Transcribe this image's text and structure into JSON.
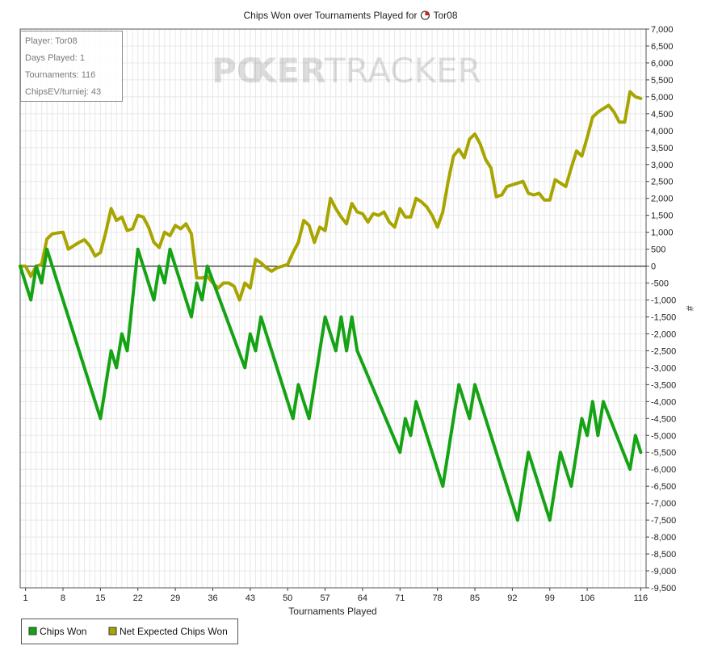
{
  "colors": {
    "chips_won": "#15a315",
    "net_expected": "#a8a400",
    "grid": "#e8e8e8",
    "zero_line": "#000000"
  },
  "watermark": {
    "part1": "PO",
    "part2": "KER",
    "part3": "TRACKER"
  },
  "info_box": {
    "player": "Player: Tor08",
    "days": "Days Played: 1",
    "tournaments": "Tournaments: 116",
    "chipsev": "ChipsEV/turniej: 43"
  },
  "chart_data": {
    "type": "line",
    "title": "Chips Won over Tournaments Played for",
    "title_player": "Tor08",
    "xlabel": "Tournaments Played",
    "ylabel": "#",
    "xlim": [
      0,
      117
    ],
    "ylim": [
      -9500,
      7000
    ],
    "x_ticks": [
      1,
      8,
      15,
      22,
      29,
      36,
      43,
      50,
      57,
      64,
      71,
      78,
      85,
      92,
      99,
      106,
      116
    ],
    "y_ticks": [
      7000,
      6500,
      6000,
      5500,
      5000,
      4500,
      4000,
      3500,
      3000,
      2500,
      2000,
      1500,
      1000,
      500,
      0,
      -500,
      -1000,
      -1500,
      -2000,
      -2500,
      -3000,
      -3500,
      -4000,
      -4500,
      -5000,
      -5500,
      -6000,
      -6500,
      -7000,
      -7500,
      -8000,
      -8500,
      -9000,
      -9500
    ],
    "y_tick_labels": [
      "7,000",
      "6,500",
      "6,000",
      "5,500",
      "5,000",
      "4,500",
      "4,000",
      "3,500",
      "3,000",
      "2,500",
      "2,000",
      "1,500",
      "1,000",
      "500",
      "0",
      "-500",
      "-1,000",
      "-1,500",
      "-2,000",
      "-2,500",
      "-3,000",
      "-3,500",
      "-4,000",
      "-4,500",
      "-5,000",
      "-5,500",
      "-6,000",
      "-6,500",
      "-7,000",
      "-7,500",
      "-8,000",
      "-8,500",
      "-9,000",
      "-9,500"
    ],
    "legend_position": "bottom-left",
    "series": [
      {
        "name": "Chips Won",
        "x": [
          0,
          2,
          3,
          4,
          5,
          15,
          17,
          18,
          19,
          20,
          22,
          25,
          26,
          27,
          28,
          32,
          33,
          34,
          35,
          42,
          43,
          44,
          45,
          51,
          52,
          54,
          57,
          59,
          60,
          61,
          62,
          63,
          71,
          72,
          73,
          74,
          79,
          82,
          84,
          85,
          93,
          95,
          99,
          101,
          103,
          104,
          105,
          106,
          107,
          108,
          109,
          114,
          115,
          116
        ],
        "y": [
          0,
          -1000,
          0,
          -500,
          500,
          -4500,
          -2500,
          -3000,
          -2000,
          -2500,
          500,
          -1000,
          0,
          -500,
          500,
          -1500,
          -500,
          -1000,
          0,
          -3000,
          -2000,
          -2500,
          -1500,
          -4500,
          -3500,
          -4500,
          -1500,
          -2500,
          -1500,
          -2500,
          -1500,
          -2500,
          -5500,
          -4500,
          -5000,
          -4000,
          -6500,
          -3500,
          -4500,
          -3500,
          -7500,
          -5500,
          -7500,
          -5500,
          -6500,
          -5500,
          -4500,
          -5000,
          -4000,
          -5000,
          -4000,
          -6000,
          -5000,
          -5500
        ]
      },
      {
        "name": "Net Expected Chips Won",
        "x": [
          0,
          1,
          2,
          3,
          4,
          5,
          6,
          7,
          8,
          9,
          10,
          11,
          12,
          13,
          14,
          15,
          16,
          17,
          18,
          19,
          20,
          21,
          22,
          23,
          24,
          25,
          26,
          27,
          28,
          29,
          30,
          31,
          32,
          33,
          34,
          35,
          36,
          37,
          38,
          39,
          40,
          41,
          42,
          43,
          44,
          45,
          46,
          47,
          48,
          49,
          50,
          51,
          52,
          53,
          54,
          55,
          56,
          57,
          58,
          59,
          60,
          61,
          62,
          63,
          64,
          65,
          66,
          67,
          68,
          69,
          70,
          71,
          72,
          73,
          74,
          75,
          76,
          77,
          78,
          79,
          80,
          81,
          82,
          83,
          84,
          85,
          86,
          87,
          88,
          89,
          90,
          91,
          92,
          93,
          94,
          95,
          96,
          97,
          98,
          99,
          100,
          101,
          102,
          103,
          104,
          105,
          106,
          107,
          108,
          109,
          110,
          111,
          112,
          113,
          114,
          115,
          116
        ],
        "y": [
          0,
          0,
          -300,
          0,
          50,
          800,
          950,
          980,
          1000,
          500,
          600,
          700,
          780,
          600,
          300,
          400,
          1000,
          1700,
          1350,
          1450,
          1050,
          1100,
          1500,
          1450,
          1150,
          700,
          550,
          1000,
          900,
          1200,
          1100,
          1250,
          950,
          -350,
          -350,
          -300,
          -500,
          -650,
          -500,
          -500,
          -600,
          -1000,
          -500,
          -650,
          200,
          100,
          -50,
          -150,
          -50,
          0,
          50,
          400,
          700,
          1350,
          1200,
          700,
          1150,
          1050,
          2000,
          1700,
          1450,
          1250,
          1850,
          1600,
          1550,
          1300,
          1550,
          1500,
          1600,
          1300,
          1150,
          1700,
          1450,
          1450,
          2000,
          1900,
          1750,
          1500,
          1150,
          1600,
          2500,
          3250,
          3450,
          3200,
          3750,
          3900,
          3600,
          3150,
          2900,
          2050,
          2100,
          2350,
          2400,
          2450,
          2500,
          2150,
          2100,
          2150,
          1950,
          1950,
          2550,
          2450,
          2350,
          2900,
          3400,
          3250,
          3800,
          4400,
          4550,
          4650,
          4750,
          4550,
          4250,
          4250,
          5150,
          5000,
          4950
        ]
      }
    ]
  }
}
